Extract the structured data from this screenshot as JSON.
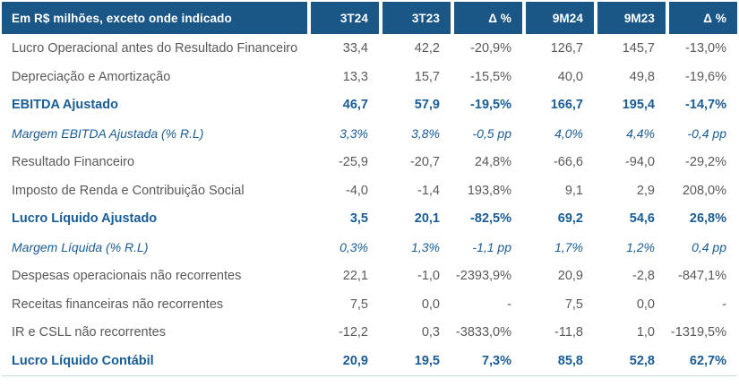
{
  "colors": {
    "header_bg": "#1B5786",
    "header_text": "#FFFFFF",
    "accent_text": "#1A5C94",
    "body_text": "#58595B",
    "bottom_rule": "#C9D7E2"
  },
  "table": {
    "unit_header": "Em R$ milhões, exceto onde indicado",
    "columns": [
      {
        "key": "3t24",
        "label": "3T24"
      },
      {
        "key": "3t23",
        "label": "3T23"
      },
      {
        "key": "delta-quarter",
        "label": "Δ %"
      },
      {
        "key": "9m24",
        "label": "9M24"
      },
      {
        "key": "9m23",
        "label": "9M23"
      },
      {
        "key": "delta-9m",
        "label": "Δ %"
      }
    ],
    "rows": [
      {
        "label": "Lucro Operacional antes do Resultado Financeiro",
        "style": "normal",
        "values": [
          "33,4",
          "42,2",
          "-20,9%",
          "126,7",
          "145,7",
          "-13,0%"
        ]
      },
      {
        "label": "Depreciação e Amortização",
        "style": "normal",
        "values": [
          "13,3",
          "15,7",
          "-15,5%",
          "40,0",
          "49,8",
          "-19,6%"
        ]
      },
      {
        "label": "EBITDA Ajustado",
        "style": "strong",
        "values": [
          "46,7",
          "57,9",
          "-19,5%",
          "166,7",
          "195,4",
          "-14,7%"
        ]
      },
      {
        "label": "Margem EBITDA Ajustada (% R.L)",
        "style": "em",
        "values": [
          "3,3%",
          "3,8%",
          "-0,5 pp",
          "4,0%",
          "4,4%",
          "-0,4 pp"
        ]
      },
      {
        "label": "Resultado Financeiro",
        "style": "normal",
        "values": [
          "-25,9",
          "-20,7",
          "24,8%",
          "-66,6",
          "-94,0",
          "-29,2%"
        ]
      },
      {
        "label": "Imposto de Renda e Contribuição Social",
        "style": "normal",
        "values": [
          "-4,0",
          "-1,4",
          "193,8%",
          "9,1",
          "2,9",
          "208,0%"
        ]
      },
      {
        "label": "Lucro Líquido Ajustado",
        "style": "strong",
        "values": [
          "3,5",
          "20,1",
          "-82,5%",
          "69,2",
          "54,6",
          "26,8%"
        ]
      },
      {
        "label": "Margem Líquida (% R.L)",
        "style": "em",
        "values": [
          "0,3%",
          "1,3%",
          "-1,1 pp",
          "1,7%",
          "1,2%",
          "0,4 pp"
        ]
      },
      {
        "label": "Despesas operacionais não recorrentes",
        "style": "normal",
        "values": [
          "22,1",
          "-1,0",
          "-2393,9%",
          "20,9",
          "-2,8",
          "-847,1%"
        ]
      },
      {
        "label": "Receitas financeiras não recorrentes",
        "style": "normal",
        "values": [
          "7,5",
          "0,0",
          "-",
          "7,5",
          "0,0",
          "-"
        ]
      },
      {
        "label": "IR e CSLL não recorrentes",
        "style": "normal",
        "values": [
          "-12,2",
          "0,3",
          "-3833,0%",
          "-11,8",
          "1,0",
          "-1319,5%"
        ]
      },
      {
        "label": "Lucro Líquido Contábil",
        "style": "strong",
        "values": [
          "20,9",
          "19,5",
          "7,3%",
          "85,8",
          "52,8",
          "62,7%"
        ]
      }
    ]
  },
  "chart_data": {
    "type": "table",
    "title": "Em R$ milhões, exceto onde indicado",
    "categories": [
      "3T24",
      "3T23",
      "Δ %",
      "9M24",
      "9M23",
      "Δ %"
    ],
    "series": [
      {
        "name": "Lucro Operacional antes do Resultado Financeiro",
        "values": [
          33.4,
          42.2,
          "-20,9%",
          126.7,
          145.7,
          "-13,0%"
        ]
      },
      {
        "name": "Depreciação e Amortização",
        "values": [
          13.3,
          15.7,
          "-15,5%",
          40.0,
          49.8,
          "-19,6%"
        ]
      },
      {
        "name": "EBITDA Ajustado",
        "values": [
          46.7,
          57.9,
          "-19,5%",
          166.7,
          195.4,
          "-14,7%"
        ]
      },
      {
        "name": "Margem EBITDA Ajustada (% R.L)",
        "values": [
          "3,3%",
          "3,8%",
          "-0,5 pp",
          "4,0%",
          "4,4%",
          "-0,4 pp"
        ]
      },
      {
        "name": "Resultado Financeiro",
        "values": [
          -25.9,
          -20.7,
          "24,8%",
          -66.6,
          -94.0,
          "-29,2%"
        ]
      },
      {
        "name": "Imposto de Renda e Contribuição Social",
        "values": [
          -4.0,
          -1.4,
          "193,8%",
          9.1,
          2.9,
          "208,0%"
        ]
      },
      {
        "name": "Lucro Líquido Ajustado",
        "values": [
          3.5,
          20.1,
          "-82,5%",
          69.2,
          54.6,
          "26,8%"
        ]
      },
      {
        "name": "Margem Líquida (% R.L)",
        "values": [
          "0,3%",
          "1,3%",
          "-1,1 pp",
          "1,7%",
          "1,2%",
          "0,4 pp"
        ]
      },
      {
        "name": "Despesas operacionais não recorrentes",
        "values": [
          22.1,
          -1.0,
          "-2393,9%",
          20.9,
          -2.8,
          "-847,1%"
        ]
      },
      {
        "name": "Receitas financeiras não recorrentes",
        "values": [
          7.5,
          0.0,
          "-",
          7.5,
          0.0,
          "-"
        ]
      },
      {
        "name": "IR e CSLL não recorrentes",
        "values": [
          -12.2,
          0.3,
          "-3833,0%",
          -11.8,
          1.0,
          "-1319,5%"
        ]
      },
      {
        "name": "Lucro Líquido Contábil",
        "values": [
          20.9,
          19.5,
          "7,3%",
          85.8,
          52.8,
          "62,7%"
        ]
      }
    ]
  }
}
